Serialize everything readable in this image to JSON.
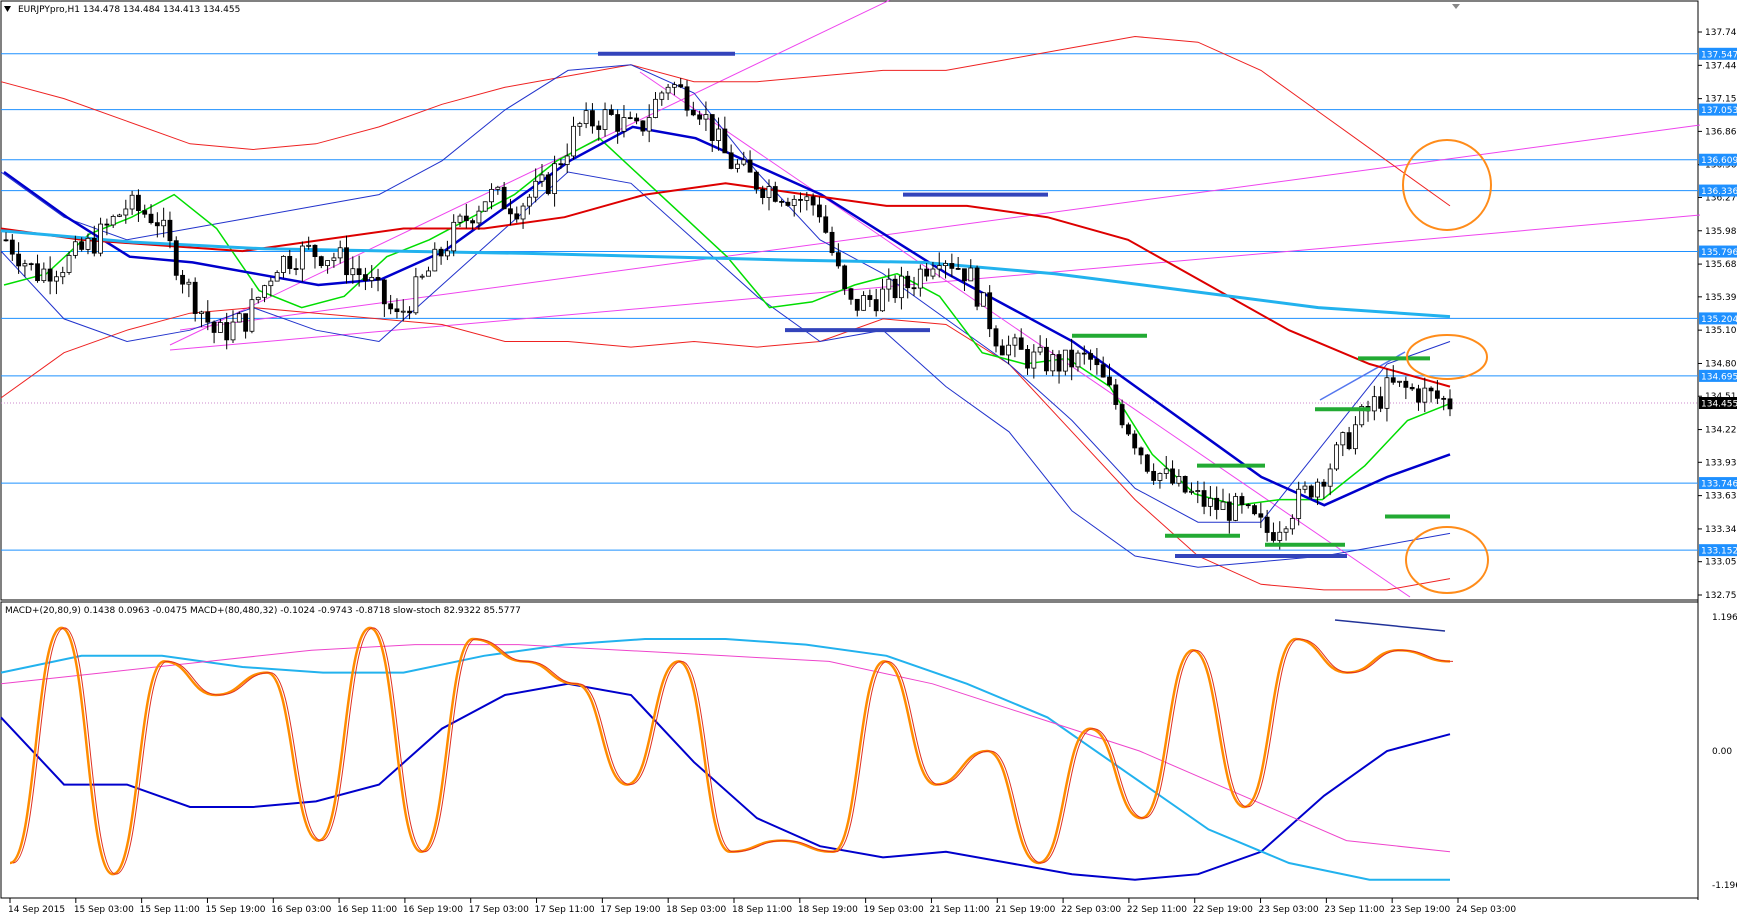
{
  "header": {
    "symbol_line": "EURJPYpro,H1  134.478 134.484 134.413 134.455"
  },
  "indicator_header": {
    "text": "MACD+(20,80,9) 0.1438 0.0963 -0.0475   MACD+(80,480,32) -0.1024 -0.9743 -0.8718   slow-stoch 82.9322 85.5777"
  },
  "colors": {
    "bull_candle": "#ffffff",
    "bear_candle": "#000000",
    "sma_green": "#00dd00",
    "sma_blue": "#0000cc",
    "sma_red": "#dd0000",
    "sma_cyan": "#22b2ee",
    "bands": "#2233cc",
    "envelope": "#ee2222",
    "trend": "#ee44ee",
    "hline": "#1e90ff",
    "level_marker_blue": "#3344bb",
    "level_marker_green": "#22aa33",
    "circle": "#ff8c1a",
    "stoch": "#ff8c00"
  },
  "chart_data": [
    {
      "type": "candlestick",
      "title": "EURJPYpro,H1",
      "ylim": [
        132.755,
        137.74
      ],
      "y_ticks": [
        "137.740",
        "137.445",
        "137.150",
        "136.860",
        "136.565",
        "136.275",
        "135.980",
        "135.685",
        "135.395",
        "135.100",
        "134.805",
        "134.515",
        "134.220",
        "133.930",
        "133.635",
        "133.340",
        "133.050",
        "132.755"
      ],
      "level_labels": [
        "137.547",
        "137.053",
        "136.609",
        "136.336",
        "135.796",
        "135.204",
        "134.695",
        "134.455",
        "133.746",
        "133.152"
      ],
      "current_price": "134.455",
      "x_ticks": [
        "14 Sep 2015",
        "15 Sep 03:00",
        "15 Sep 11:00",
        "15 Sep 19:00",
        "16 Sep 03:00",
        "16 Sep 11:00",
        "16 Sep 19:00",
        "17 Sep 03:00",
        "17 Sep 11:00",
        "17 Sep 19:00",
        "18 Sep 03:00",
        "18 Sep 11:00",
        "18 Sep 19:00",
        "19 Sep 03:00",
        "21 Sep 11:00",
        "21 Sep 19:00",
        "22 Sep 03:00",
        "22 Sep 11:00",
        "22 Sep 19:00",
        "23 Sep 03:00",
        "23 Sep 11:00",
        "23 Sep 19:00",
        "24 Sep 03:00"
      ],
      "close_path": [
        135.9,
        135.6,
        135.7,
        135.9,
        136.2,
        136.1,
        135.5,
        135.05,
        135.2,
        135.7,
        135.8,
        135.75,
        135.55,
        135.2,
        135.6,
        136.0,
        136.3,
        136.2,
        136.4,
        136.9,
        137.0,
        136.85,
        137.3,
        137.1,
        136.6,
        136.4,
        136.3,
        136.2,
        135.3,
        135.4,
        135.5,
        135.8,
        135.6,
        135.0,
        134.85,
        134.8,
        134.85,
        134.4,
        133.9,
        133.7,
        133.55,
        133.5,
        133.3,
        133.6,
        133.9,
        134.3,
        134.6,
        134.55,
        134.455
      ],
      "horizontal_levels": [
        137.547,
        137.053,
        136.609,
        136.336,
        135.796,
        135.204,
        134.695,
        133.746,
        133.152
      ],
      "series": [
        {
          "values": [
            135.5,
            135.6,
            135.95,
            136.1,
            136.3,
            136.0,
            135.45,
            135.3,
            135.4,
            135.75,
            135.9,
            136.1,
            136.3,
            136.6,
            136.8,
            136.45,
            136.1,
            135.75,
            135.3,
            135.35,
            135.5,
            135.6,
            135.4,
            134.9,
            134.8,
            134.85,
            134.6,
            134.0,
            133.65,
            133.55,
            133.6,
            133.6,
            133.9,
            134.3,
            134.45
          ]
        },
        {
          "values": [
            136.5,
            136.1,
            135.75,
            135.7,
            135.6,
            135.5,
            135.55,
            135.8,
            136.2,
            136.6,
            136.9,
            136.8,
            136.55,
            136.3,
            135.95,
            135.6,
            135.3,
            135.0,
            134.6,
            134.2,
            133.8,
            133.55,
            133.8,
            134.0
          ]
        },
        {
          "values": [
            136.0,
            135.9,
            135.85,
            135.8,
            135.9,
            136.0,
            136.0,
            136.1,
            136.3,
            136.4,
            136.3,
            136.2,
            136.2,
            136.1,
            135.9,
            135.5,
            135.1,
            134.8,
            134.6
          ]
        },
        {
          "values": [
            135.98,
            135.88,
            135.82,
            135.8,
            135.78,
            135.75,
            135.72,
            135.7,
            135.6,
            135.45,
            135.3,
            135.22
          ]
        }
      ],
      "annotations": "3 orange circles near 136.5, 134.9 and 133.05 on right side"
    },
    {
      "type": "line",
      "title": "MACD+ / slow-stoch",
      "ylim": [
        -1.1969,
        1.1969
      ],
      "y_ticks": [
        "1.1969",
        "0.00",
        "-1.1969"
      ],
      "series": [
        {
          "values": [
            0.3,
            -0.3,
            -0.3,
            -0.5,
            -0.5,
            -0.45,
            -0.3,
            0.2,
            0.5,
            0.6,
            0.5,
            -0.1,
            -0.6,
            -0.85,
            -0.95,
            -0.9,
            -1.0,
            -1.1,
            -1.15,
            -1.1,
            -0.9,
            -0.4,
            0.0,
            0.15
          ]
        },
        {
          "values": [
            0.7,
            0.85,
            0.85,
            0.75,
            0.7,
            0.7,
            0.85,
            0.95,
            1.0,
            1.0,
            0.95,
            0.85,
            0.6,
            0.3,
            -0.2,
            -0.7,
            -1.0,
            -1.15,
            -1.15
          ]
        },
        {
          "values": [
            0.6,
            0.7,
            0.8,
            0.9,
            0.95,
            0.95,
            0.9,
            0.85,
            0.8,
            0.6,
            0.3,
            0.0,
            -0.4,
            -0.8,
            -0.9
          ]
        },
        {
          "values": [
            -1.0,
            1.1,
            -1.1,
            0.8,
            0.5,
            0.7,
            -0.8,
            1.1,
            -0.9,
            1.0,
            0.8,
            0.6,
            -0.3,
            0.8,
            -0.9,
            -0.8,
            -0.9,
            0.8,
            -0.3,
            0.0,
            -1.0,
            0.2,
            -0.6,
            0.9,
            -0.5,
            1.0,
            0.7,
            0.9,
            0.8
          ]
        }
      ]
    }
  ]
}
